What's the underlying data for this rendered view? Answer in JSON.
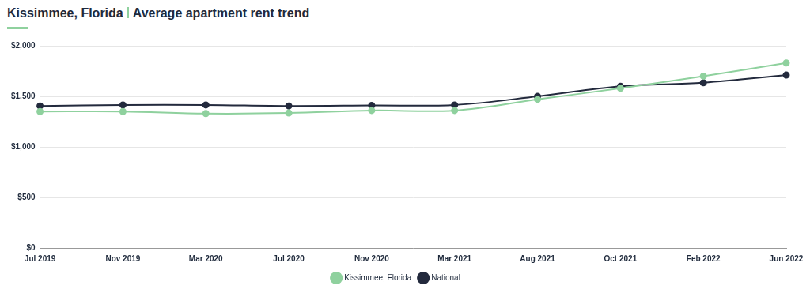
{
  "chart_data": {
    "type": "line",
    "title": "Kissimmee, Florida",
    "subtitle": "Average apartment rent trend",
    "categories": [
      "Jul 2019",
      "Nov 2019",
      "Mar 2020",
      "Jul 2020",
      "Nov 2020",
      "Mar 2021",
      "Aug 2021",
      "Oct 2021",
      "Feb 2022",
      "Jun 2022"
    ],
    "series": [
      {
        "name": "Kissimmee, Florida",
        "color": "#8fd19e",
        "marker": "circle",
        "values": [
          1350,
          1350,
          1330,
          1335,
          1360,
          1360,
          1470,
          1580,
          1700,
          1830
        ]
      },
      {
        "name": "National",
        "color": "#232a3d",
        "marker": "circle",
        "values": [
          1405,
          1415,
          1415,
          1405,
          1410,
          1415,
          1500,
          1600,
          1635,
          1710
        ]
      }
    ],
    "ylim": [
      0,
      2000
    ],
    "yticks": [
      {
        "value": 0,
        "label": "$0"
      },
      {
        "value": 500,
        "label": "$500"
      },
      {
        "value": 1000,
        "label": "$1,000"
      },
      {
        "value": 1500,
        "label": "$1,500"
      },
      {
        "value": 2000,
        "label": "$2,000"
      }
    ],
    "grid": true,
    "legend": "bottom"
  }
}
